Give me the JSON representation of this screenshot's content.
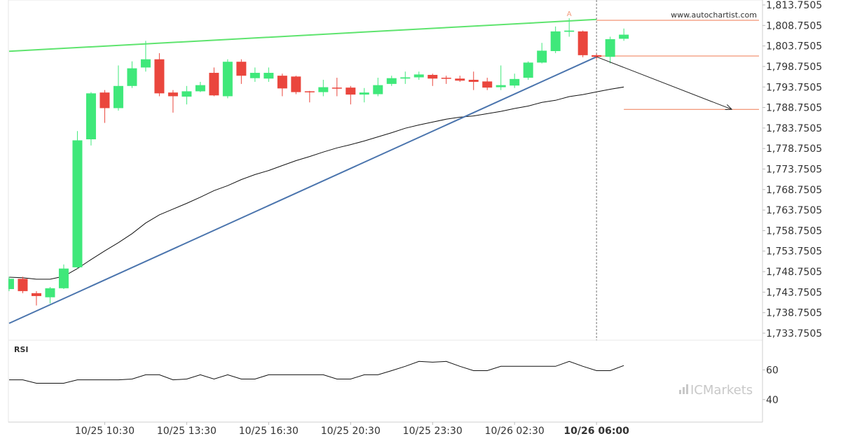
{
  "chart_data": {
    "type": "candlestick",
    "watermark": "www.autochartist.com",
    "brand": "ICMarkets",
    "categories": [
      null,
      null,
      null,
      null,
      null,
      null,
      null,
      "10/25 10:30",
      null,
      null,
      null,
      null,
      null,
      "10/25 13:30",
      null,
      null,
      null,
      null,
      null,
      "10/25 16:30",
      null,
      null,
      null,
      null,
      null,
      "10/25 20:30",
      null,
      null,
      null,
      null,
      null,
      "10/25 23:30",
      null,
      null,
      null,
      null,
      null,
      "10/26 02:30",
      null,
      null,
      null,
      null,
      null,
      "10/26 06:00",
      null,
      null
    ],
    "xlim": [
      -0.05,
      55.15
    ],
    "ylim": [
      1732.04,
      1814.95
    ],
    "yticks": [
      {
        "value": 1733.7505,
        "label": "1,733.7505"
      },
      {
        "value": 1738.7505,
        "label": "1,738.7505"
      },
      {
        "value": 1743.7505,
        "label": "1,743.7505"
      },
      {
        "value": 1748.7505,
        "label": "1,748.7505"
      },
      {
        "value": 1753.7505,
        "label": "1,753.7505"
      },
      {
        "value": 1758.7505,
        "label": "1,758.7505"
      },
      {
        "value": 1763.7505,
        "label": "1,763.7505"
      },
      {
        "value": 1768.7505,
        "label": "1,768.7505"
      },
      {
        "value": 1773.7505,
        "label": "1,773.7505"
      },
      {
        "value": 1778.7505,
        "label": "1,778.7505"
      },
      {
        "value": 1783.7505,
        "label": "1,783.7505"
      },
      {
        "value": 1788.7505,
        "label": "1,788.7505"
      },
      {
        "value": 1793.7505,
        "label": "1,793.7505"
      },
      {
        "value": 1798.7505,
        "label": "1,798.7505"
      },
      {
        "value": 1803.7505,
        "label": "1,803.7505"
      },
      {
        "value": 1808.7505,
        "label": "1,808.7505"
      },
      {
        "value": 1813.7505,
        "label": "1,813.7505"
      }
    ],
    "open": [
      1744.5,
      1747,
      1743.5,
      1742.5,
      1744.7,
      1749.8,
      1781,
      1792.4,
      1788.6,
      1794,
      1798.5,
      1800.5,
      1792.4,
      1791.4,
      1792.7,
      1797.2,
      1791.5,
      1799.9,
      1795.9,
      1795.8,
      1796.5,
      1796.3,
      1792.7,
      1792.5,
      1793.6,
      1793.6,
      1791.9,
      1792,
      1794.5,
      1795.8,
      1796.1,
      1796.7,
      1796,
      1795.8,
      1795.5,
      1795.1,
      1793.7,
      1794.1,
      1796,
      1799.7,
      1802.5,
      1807.2,
      1807.3,
      1801.5,
      1801.1,
      1805.5
    ],
    "high": [
      1747.5,
      1747.5,
      1744,
      1745,
      1750.5,
      1783,
      1792.5,
      1793,
      1799,
      1800,
      1805,
      1802,
      1793,
      1794,
      1795,
      1798.5,
      1800.5,
      1800.5,
      1798.5,
      1798.5,
      1797,
      1796.5,
      1792.8,
      1795.5,
      1796,
      1794,
      1793.5,
      1796,
      1796.5,
      1797.5,
      1797.5,
      1797,
      1796.5,
      1796.5,
      1797.5,
      1796,
      1799,
      1797,
      1800,
      1804.5,
      1808.5,
      1810.5,
      1807.5,
      1801.8,
      1806,
      1808
    ],
    "low": [
      1744,
      1743.5,
      1740.5,
      1741,
      1744.5,
      1749.5,
      1779.5,
      1785,
      1788,
      1793.5,
      1797.5,
      1791.5,
      1787.5,
      1789.5,
      1792.5,
      1791.5,
      1791,
      1794.5,
      1795,
      1795,
      1791.5,
      1792,
      1790,
      1791.5,
      1791.5,
      1789.5,
      1790,
      1791.5,
      1794,
      1794.5,
      1795.5,
      1794,
      1794.5,
      1795,
      1793,
      1793,
      1793,
      1793.5,
      1795.5,
      1799.5,
      1802,
      1806,
      1801,
      1800.5,
      1799.5,
      1805
    ],
    "close": [
      1747,
      1744,
      1742.8,
      1744.7,
      1749.5,
      1780.75,
      1792.2,
      1788.6,
      1794,
      1798.3,
      1800.5,
      1792.2,
      1791.5,
      1792.7,
      1794.2,
      1791.7,
      1799.9,
      1796.5,
      1797.2,
      1797.2,
      1793.4,
      1792.5,
      1792.5,
      1793.7,
      1793.4,
      1791.9,
      1792.4,
      1794.2,
      1795.9,
      1796.1,
      1796.8,
      1795.8,
      1795.8,
      1795.3,
      1795,
      1793.6,
      1794.2,
      1795.7,
      1799.7,
      1802.6,
      1807.3,
      1807.5,
      1801.5,
      1801.1,
      1805.4,
      1806.5
    ],
    "up_color": "#3fe87a",
    "down_color": "#ea463d",
    "moving_average": {
      "color": "#111111",
      "values": [
        1747.4,
        1747.25,
        1746.9,
        1746.9,
        1747.6,
        1749.5,
        1751.7,
        1753.8,
        1755.8,
        1758.0,
        1760.6,
        1762.6,
        1764.0,
        1765.4,
        1766.9,
        1768.5,
        1769.7,
        1771.2,
        1772.4,
        1773.4,
        1774.6,
        1775.8,
        1776.8,
        1777.9,
        1778.9,
        1779.7,
        1780.6,
        1781.6,
        1782.6,
        1783.7,
        1784.5,
        1785.2,
        1785.9,
        1786.4,
        1786.7,
        1787.25,
        1787.8,
        1788.5,
        1789.1,
        1790.0,
        1790.5,
        1791.4,
        1791.9,
        1792.55,
        1793.2,
        1793.75
      ]
    },
    "trendlines": [
      {
        "color": "#5ee46e",
        "x": [
          0,
          43
        ],
        "values": [
          1802.45,
          1810.2
        ]
      },
      {
        "color": "#4a74ad",
        "x": [
          0,
          43
        ],
        "values": [
          1736.15,
          1801.1
        ]
      }
    ],
    "levels": [
      {
        "color": "#ef7a52",
        "value": 1810.0,
        "start": 43
      },
      {
        "color": "#ef7a52",
        "value": 1801.3,
        "start": 43
      },
      {
        "color": "#ef7a52",
        "value": 1788.3,
        "start": 45
      }
    ],
    "forecast": {
      "color": "#222222",
      "x": [
        43,
        52.9
      ],
      "values": [
        1801.1,
        1788.3
      ]
    },
    "annotation": {
      "text": "A",
      "x": 41,
      "color": "#f29a7a"
    },
    "rsi": {
      "title": "RSI",
      "color": "#111111",
      "ylim": [
        24.8,
        80
      ],
      "yticks": [
        40,
        60
      ],
      "values": [
        53.3,
        53.3,
        51,
        51,
        51,
        53.3,
        53.3,
        53.3,
        53.3,
        53.8,
        56.7,
        56.7,
        53.3,
        53.8,
        56.7,
        53.8,
        56.7,
        53.8,
        53.8,
        56.7,
        56.7,
        56.7,
        56.7,
        56.7,
        53.8,
        53.8,
        56.7,
        56.7,
        59.5,
        62.4,
        65.7,
        65.2,
        65.7,
        62.4,
        59.5,
        59.5,
        62.4,
        62.4,
        62.4,
        62.4,
        62.4,
        65.7,
        62.4,
        59.5,
        59.5,
        62.9
      ]
    }
  }
}
